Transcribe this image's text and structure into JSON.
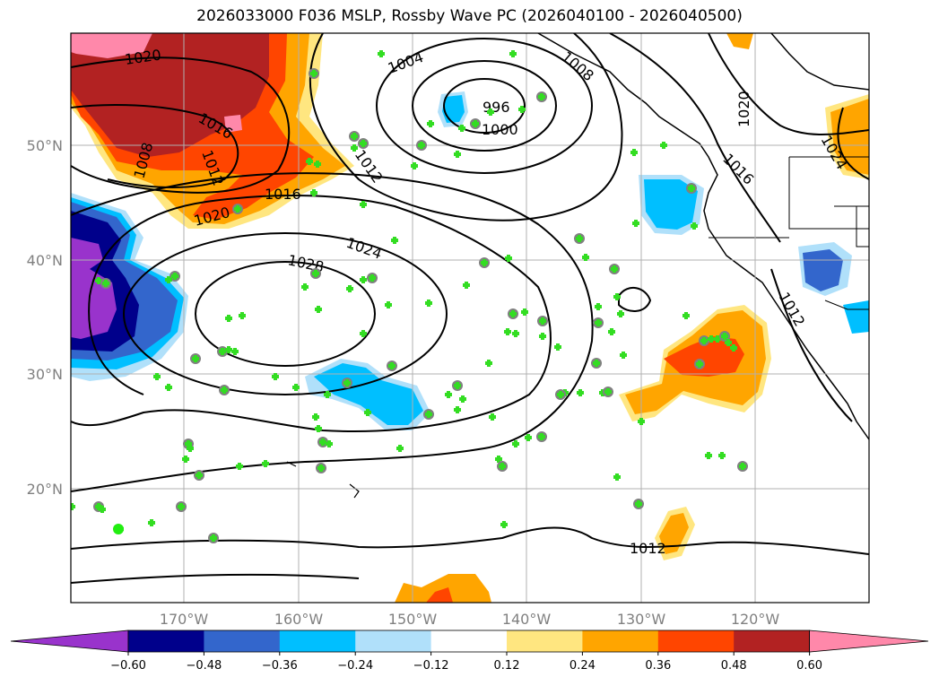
{
  "title": "2026033000 F036 MSLP, Rossby Wave PC (2026040100 - 2026040500)",
  "lat_labels": [
    "50°N",
    "40°N",
    "30°N",
    "20°N"
  ],
  "lon_labels": [
    "170°W",
    "160°W",
    "150°W",
    "140°W",
    "130°W",
    "120°W"
  ],
  "isobar_labels": [
    "1020",
    "1016",
    "1012",
    "1008",
    "1016",
    "1020",
    "1004",
    "996",
    "1000",
    "1008",
    "1012",
    "1024",
    "1028",
    "1016",
    "1020",
    "1024",
    "1012",
    "1012"
  ],
  "colorbar": {
    "ticks": [
      "−0.60",
      "−0.48",
      "−0.36",
      "−0.24",
      "−0.12",
      "0.12",
      "0.24",
      "0.36",
      "0.48",
      "0.60"
    ],
    "colors": [
      "#9933cc",
      "#00008b",
      "#3366cc",
      "#00bfff",
      "#b0e0fa",
      "#ffffff",
      "#ffe680",
      "#ffa500",
      "#ff4500",
      "#b22222",
      "#ff88aa"
    ]
  }
}
